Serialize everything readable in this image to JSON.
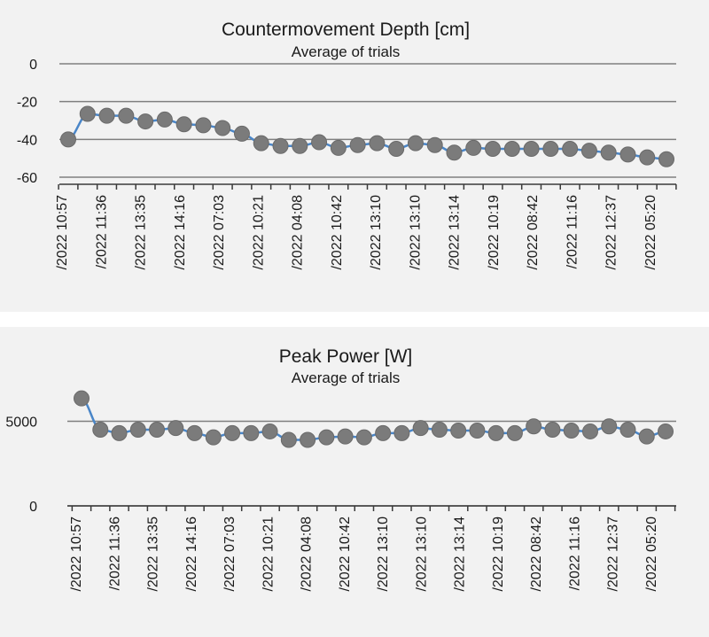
{
  "chart_data": [
    {
      "type": "line",
      "title": "Countermovement Depth [cm]",
      "subtitle": "Average of trials",
      "xlabel": "",
      "ylabel": "",
      "ylim": [
        -60,
        0
      ],
      "yticks": [
        0,
        -20,
        -40,
        -60
      ],
      "grid": true,
      "x_tick_labels": [
        "/2022 10:57",
        "/2022 11:36",
        "/2022 13:35",
        "/2022 14:16",
        "/2022 07:03",
        "/2022 10:21",
        "/2022 04:08",
        "/2022 10:42",
        "/2022 13:10",
        "/2022 13:10",
        "/2022 13:14",
        "/2022 10:19",
        "/2022 08:42",
        "/2022 11:16",
        "/2022 12:37",
        "/2022 05:20"
      ],
      "series": [
        {
          "values": [
            -40,
            -26.5,
            -27.5,
            -27.5,
            -30.5,
            -29.5,
            -32,
            -32.5,
            -34,
            -37,
            -42,
            -43.5,
            -43.5,
            -41.5,
            -44.5,
            -43,
            -42,
            -45,
            -42,
            -43,
            -47,
            -44.5,
            -45,
            -45,
            -45,
            -45,
            -45,
            -46,
            -47,
            -48,
            -49.5,
            -50.5
          ]
        }
      ],
      "colors": {
        "line": "#4a86c8",
        "marker": "#7b7b7b",
        "marker_edge": "#6a6a6a"
      }
    },
    {
      "type": "line",
      "title": "Peak Power [W]",
      "subtitle": "Average of trials",
      "xlabel": "",
      "ylabel": "",
      "ylim": [
        0,
        6700
      ],
      "yticks": [
        0,
        5000
      ],
      "grid": true,
      "x_tick_labels": [
        "/2022 10:57",
        "/2022 11:36",
        "/2022 13:35",
        "/2022 14:16",
        "/2022 07:03",
        "/2022 10:21",
        "/2022 04:08",
        "/2022 10:42",
        "/2022 13:10",
        "/2022 13:10",
        "/2022 13:14",
        "/2022 10:19",
        "/2022 08:42",
        "/2022 11:16",
        "/2022 12:37",
        "/2022 05:20"
      ],
      "series": [
        {
          "values": [
            6350,
            4500,
            4300,
            4500,
            4500,
            4600,
            4300,
            4050,
            4300,
            4300,
            4400,
            3900,
            3900,
            4050,
            4100,
            4050,
            4300,
            4300,
            4600,
            4500,
            4450,
            4450,
            4300,
            4300,
            4700,
            4500,
            4450,
            4400,
            4700,
            4500,
            4100,
            4400
          ]
        }
      ],
      "colors": {
        "line": "#4a86c8",
        "marker": "#7b7b7b",
        "marker_edge": "#6a6a6a"
      }
    }
  ]
}
